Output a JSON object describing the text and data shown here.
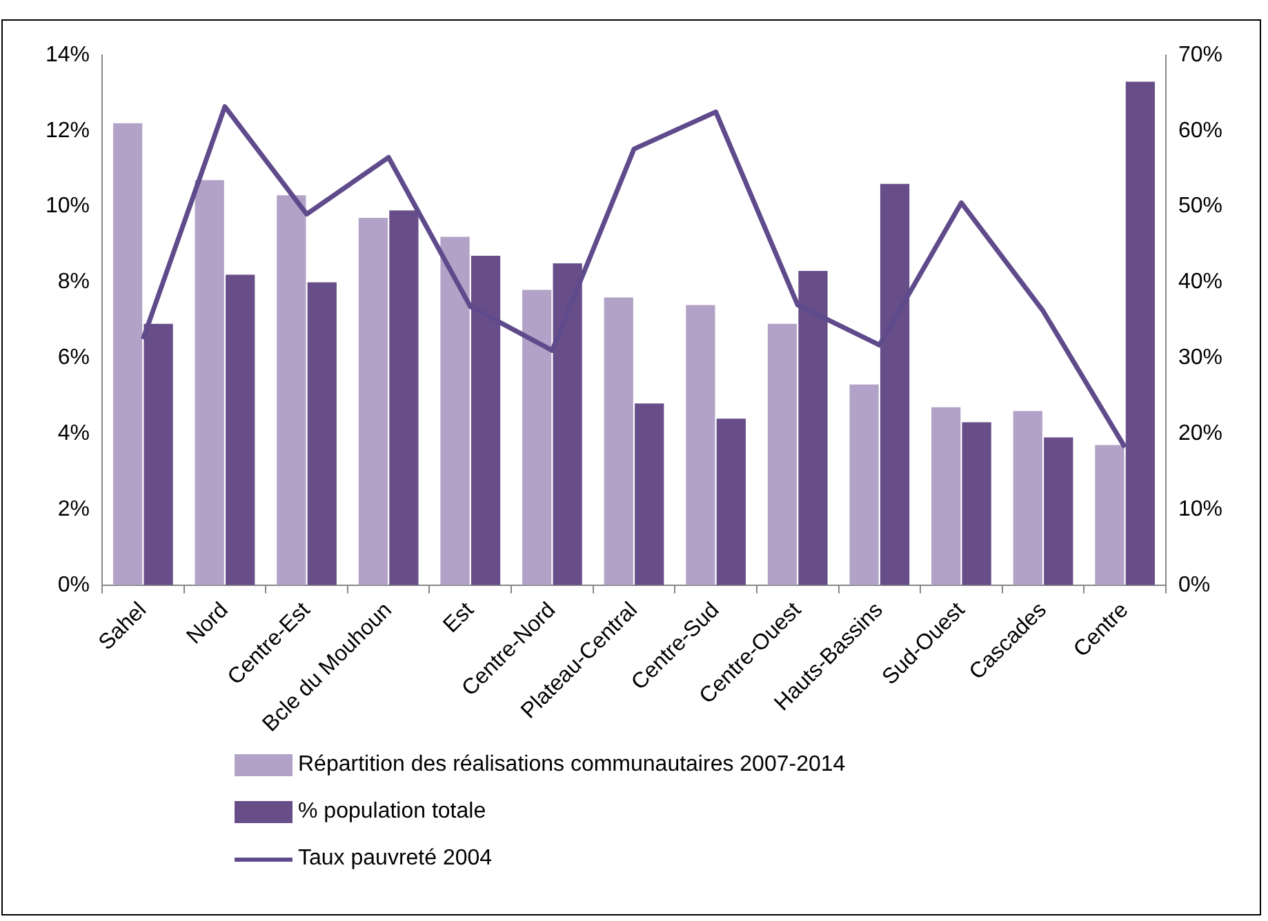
{
  "chart_data": {
    "type": "bar",
    "categories": [
      "Sahel",
      "Nord",
      "Centre-Est",
      "Bcle du Mouhoun",
      "Est",
      "Centre-Nord",
      "Plateau-Central",
      "Centre-Sud",
      "Centre-Ouest",
      "Hauts-Bassins",
      "Sud-Ouest",
      "Cascades",
      "Centre"
    ],
    "series": [
      {
        "name": "Répartition des réalisations communautaires 2007-2014",
        "color": "#b3a2c7",
        "values": [
          12.2,
          10.7,
          10.3,
          9.7,
          9.2,
          7.8,
          7.6,
          7.4,
          6.9,
          5.3,
          4.7,
          4.6,
          3.7
        ]
      },
      {
        "name": "% population totale",
        "color": "#684e89",
        "values": [
          6.9,
          8.2,
          8.0,
          9.9,
          8.7,
          8.5,
          4.8,
          4.4,
          8.3,
          10.6,
          4.3,
          3.9,
          13.3
        ]
      },
      {
        "name": "Taux pauvreté 2004",
        "type": "line",
        "axis": "y2",
        "color": "#5f4b8b",
        "values": [
          32.5,
          63.2,
          49,
          56.5,
          36.8,
          31,
          57.6,
          62.5,
          37,
          31.7,
          50.5,
          36.2,
          18.2
        ]
      }
    ],
    "ylim": [
      0,
      14
    ],
    "yticks": [
      {
        "value": 0,
        "label": "0%"
      },
      {
        "value": 2,
        "label": "2%"
      },
      {
        "value": 4,
        "label": "4%"
      },
      {
        "value": 6,
        "label": "6%"
      },
      {
        "value": 8,
        "label": "8%"
      },
      {
        "value": 10,
        "label": "10%"
      },
      {
        "value": 12,
        "label": "12%"
      },
      {
        "value": 14,
        "label": "14%"
      }
    ],
    "y2lim": [
      0,
      70
    ],
    "y2ticks": [
      {
        "value": 0,
        "label": "0%"
      },
      {
        "value": 10,
        "label": "10%"
      },
      {
        "value": 20,
        "label": "20%"
      },
      {
        "value": 30,
        "label": "30%"
      },
      {
        "value": 40,
        "label": "40%"
      },
      {
        "value": 50,
        "label": "50%"
      },
      {
        "value": 60,
        "label": "60%"
      },
      {
        "value": 70,
        "label": "70%"
      }
    ],
    "grid": false,
    "legend": "bottom",
    "marker": "none",
    "line_style": "solid"
  }
}
